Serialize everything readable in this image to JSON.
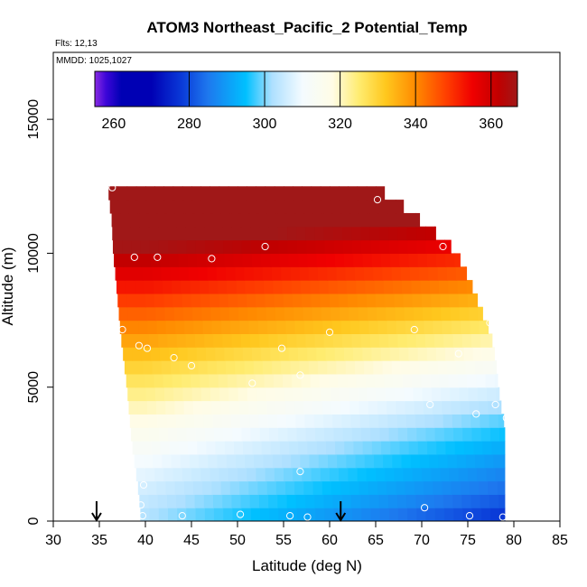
{
  "chart_data": {
    "type": "heatmap",
    "title": "ATOM3 Northeast_Pacific_2 Potential_Temp",
    "flights_note": "Flts: 12,13",
    "dates_note": "MMDD: 1025,1027",
    "xlabel": "Latitude (deg N)",
    "ylabel": "Altitude (m)",
    "xlim": [
      30,
      85
    ],
    "ylim": [
      0,
      17500
    ],
    "x_ticks": [
      30,
      35,
      40,
      45,
      50,
      55,
      60,
      65,
      70,
      75,
      80,
      85
    ],
    "y_ticks": [
      0,
      5000,
      10000,
      15000
    ],
    "colorbar": {
      "range": [
        255,
        367
      ],
      "ticks": [
        260,
        280,
        300,
        320,
        340,
        360
      ],
      "divider_values": [
        280,
        300,
        320,
        340,
        360
      ],
      "stops": [
        {
          "v": 255,
          "color": "#8a2be2"
        },
        {
          "v": 258,
          "color": "#3c06d8"
        },
        {
          "v": 262,
          "color": "#0000b4"
        },
        {
          "v": 270,
          "color": "#0000b4"
        },
        {
          "v": 278,
          "color": "#0a3ad8"
        },
        {
          "v": 285,
          "color": "#1e78ee"
        },
        {
          "v": 295,
          "color": "#00c0ff"
        },
        {
          "v": 302,
          "color": "#aee0ff"
        },
        {
          "v": 310,
          "color": "#f4fbff"
        },
        {
          "v": 318,
          "color": "#fffce6"
        },
        {
          "v": 325,
          "color": "#ffec70"
        },
        {
          "v": 332,
          "color": "#ffc81e"
        },
        {
          "v": 340,
          "color": "#ff8a00"
        },
        {
          "v": 348,
          "color": "#ff4000"
        },
        {
          "v": 355,
          "color": "#f00000"
        },
        {
          "v": 362,
          "color": "#c00000"
        },
        {
          "v": 367,
          "color": "#a01818"
        }
      ]
    },
    "curtain": {
      "bin_height_m": 500,
      "bin_width_deg": 1,
      "profile_left_deg": [
        [
          0,
          39.5
        ],
        [
          1000,
          39.3
        ],
        [
          3000,
          38.5
        ],
        [
          5000,
          38.0
        ],
        [
          7000,
          37.3
        ],
        [
          9000,
          36.8
        ],
        [
          10000,
          36.5
        ],
        [
          11500,
          36.3
        ],
        [
          12000,
          36.0
        ]
      ],
      "profile_right_deg": [
        [
          0,
          79.0
        ],
        [
          3000,
          79.0
        ],
        [
          3600,
          79.0
        ],
        [
          4000,
          78.7
        ],
        [
          5000,
          78.3
        ],
        [
          6000,
          78.0
        ],
        [
          7000,
          77.5
        ],
        [
          8000,
          76.3
        ],
        [
          9000,
          75.2
        ],
        [
          10000,
          73.8
        ],
        [
          10500,
          72.5
        ],
        [
          11000,
          70.5
        ],
        [
          11500,
          69.0
        ],
        [
          12000,
          67.0
        ],
        [
          12400,
          65.3
        ]
      ],
      "top_m": 12500
    },
    "obs_points": [
      {
        "lat": 36.4,
        "alt": 12450
      },
      {
        "lat": 65.2,
        "alt": 12000
      },
      {
        "lat": 38.8,
        "alt": 9850
      },
      {
        "lat": 41.3,
        "alt": 9850
      },
      {
        "lat": 47.2,
        "alt": 9800
      },
      {
        "lat": 53.0,
        "alt": 10250
      },
      {
        "lat": 72.3,
        "alt": 10250
      },
      {
        "lat": 37.5,
        "alt": 7150
      },
      {
        "lat": 39.3,
        "alt": 6550
      },
      {
        "lat": 40.2,
        "alt": 6450
      },
      {
        "lat": 43.1,
        "alt": 6100
      },
      {
        "lat": 54.8,
        "alt": 6450
      },
      {
        "lat": 60.0,
        "alt": 7050
      },
      {
        "lat": 69.2,
        "alt": 7150
      },
      {
        "lat": 77.4,
        "alt": 7400
      },
      {
        "lat": 45.0,
        "alt": 5800
      },
      {
        "lat": 56.8,
        "alt": 5450
      },
      {
        "lat": 51.6,
        "alt": 5150
      },
      {
        "lat": 74.0,
        "alt": 6250
      },
      {
        "lat": 70.9,
        "alt": 4350
      },
      {
        "lat": 78.0,
        "alt": 4350
      },
      {
        "lat": 75.9,
        "alt": 4000
      },
      {
        "lat": 79.2,
        "alt": 3850
      },
      {
        "lat": 56.8,
        "alt": 1850
      },
      {
        "lat": 39.8,
        "alt": 1350
      },
      {
        "lat": 39.5,
        "alt": 600
      },
      {
        "lat": 39.7,
        "alt": 200
      },
      {
        "lat": 44.0,
        "alt": 200
      },
      {
        "lat": 50.3,
        "alt": 250
      },
      {
        "lat": 55.7,
        "alt": 200
      },
      {
        "lat": 57.6,
        "alt": 150
      },
      {
        "lat": 70.3,
        "alt": 500
      },
      {
        "lat": 75.2,
        "alt": 200
      },
      {
        "lat": 78.8,
        "alt": 150
      }
    ],
    "arrows_lat": [
      34.7,
      61.2
    ]
  }
}
